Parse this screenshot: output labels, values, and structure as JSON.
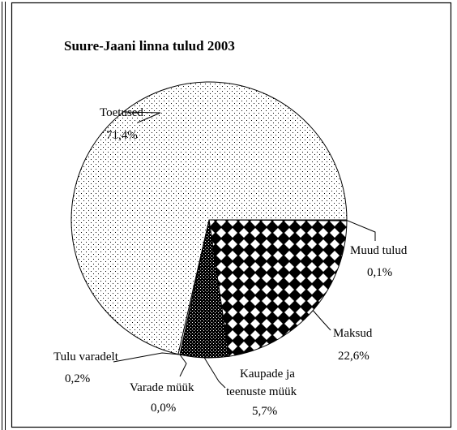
{
  "chart_data": {
    "type": "pie",
    "title": "Suure-Jaani linna tulud 2003",
    "slices": [
      {
        "name": "Muud tulud",
        "value": 0.1,
        "label": "0,1%",
        "pattern": "solid-white"
      },
      {
        "name": "Maksud",
        "value": 22.6,
        "label": "22,6%",
        "pattern": "diamond-checker"
      },
      {
        "name": "Kaupade ja teenuste müük",
        "name_lines": [
          "Kaupade ja",
          "teenuste müük"
        ],
        "value": 5.7,
        "label": "5,7%",
        "pattern": "dense-dots"
      },
      {
        "name": "Varade müük",
        "value": 0.0,
        "label": "0,0%",
        "pattern": "solid-white"
      },
      {
        "name": "Tulu varadelt",
        "value": 0.2,
        "label": "0,2%",
        "pattern": "solid-white"
      },
      {
        "name": "Toetused",
        "value": 71.4,
        "label": "71,4%",
        "pattern": "sparse-dots"
      }
    ],
    "start_angle_deg": 0,
    "direction": "clockwise",
    "legend": "none",
    "border": true
  }
}
